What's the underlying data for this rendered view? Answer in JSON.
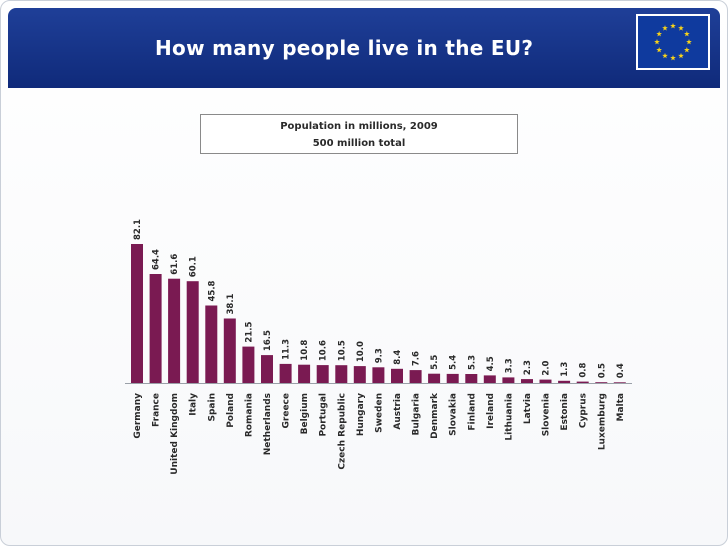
{
  "header": {
    "title": "How many people live in the EU?",
    "flag_icon": "eu-flag-icon"
  },
  "info_box": {
    "line1": "Population in millions, 2009",
    "line2": "500 million total"
  },
  "colors": {
    "header": "#1a3a92",
    "bar": "#7a1a52",
    "text": "#2a2a2a"
  },
  "chart_data": {
    "type": "bar",
    "title": "",
    "xlabel": "",
    "ylabel": "",
    "ylim": [
      0,
      90
    ],
    "categories": [
      "Germany",
      "France",
      "United Kingdom",
      "Italy",
      "Spain",
      "Poland",
      "Romania",
      "Netherlands",
      "Greece",
      "Belgium",
      "Portugal",
      "Czech Republic",
      "Hungary",
      "Sweden",
      "Austria",
      "Bulgaria",
      "Denmark",
      "Slovakia",
      "Finland",
      "Ireland",
      "Lithuania",
      "Latvia",
      "Slovenia",
      "Estonia",
      "Cyprus",
      "Luxemburg",
      "Malta"
    ],
    "values": [
      82.1,
      64.4,
      61.6,
      60.1,
      45.8,
      38.1,
      21.5,
      16.5,
      11.3,
      10.8,
      10.6,
      10.5,
      10.0,
      9.3,
      8.4,
      7.6,
      5.5,
      5.4,
      5.3,
      4.5,
      3.3,
      2.3,
      2.0,
      1.3,
      0.8,
      0.5,
      0.4
    ],
    "value_labels": [
      "82.1",
      "64.4",
      "61.6",
      "60.1",
      "45.8",
      "38.1",
      "21.5",
      "16.5",
      "11.3",
      "10.8",
      "10.6",
      "10.5",
      "10.0",
      "9.3",
      "8.4",
      "7.6",
      "5.5",
      "5.4",
      "5.3",
      "4.5",
      "3.3",
      "2.3",
      "2.0",
      "1.3",
      "0.8",
      "0.5",
      "0.4"
    ],
    "grid": false,
    "legend": "none"
  }
}
